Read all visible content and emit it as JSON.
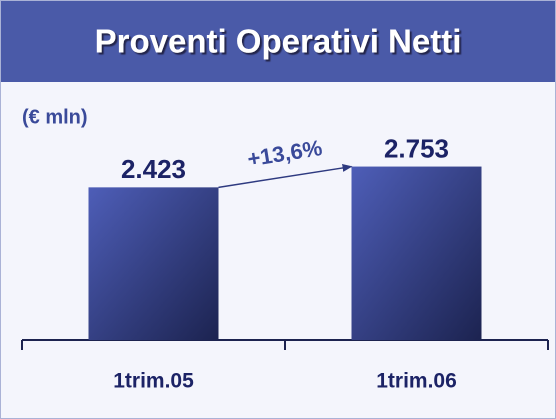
{
  "chart_data": {
    "type": "bar",
    "title": "Proventi Operativi Netti",
    "subtitle": "(€ mln)",
    "categories": [
      "1trim.05",
      "1trim.06"
    ],
    "values": [
      2423,
      2753
    ],
    "value_labels": [
      "2.423",
      "2.753"
    ],
    "annotation": "+13,6%",
    "ylim": [
      0,
      3000
    ],
    "color": "#3c4a9e"
  }
}
